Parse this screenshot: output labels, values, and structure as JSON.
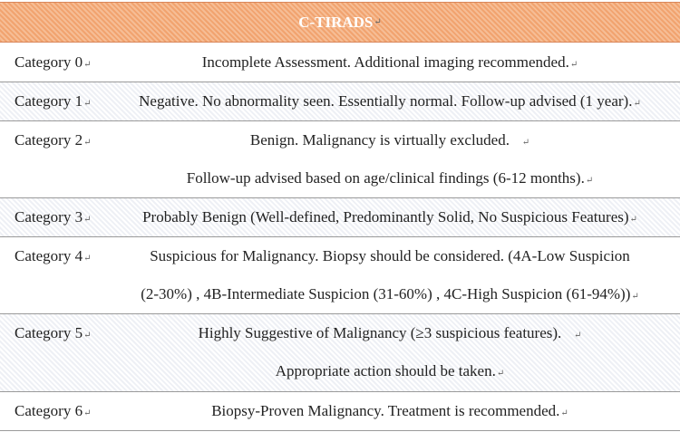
{
  "table": {
    "title": "C-TIRADS",
    "paragraph_mark": "↵",
    "rows": [
      {
        "category": "Category 0",
        "lines": [
          "Incomplete Assessment. Additional imaging recommended."
        ]
      },
      {
        "category": "Category 1",
        "lines": [
          "Negative. No abnormality seen. Essentially normal. Follow-up advised (1 year)."
        ]
      },
      {
        "category": "Category 2",
        "lines": [
          "Benign. Malignancy is virtually excluded.",
          "Follow-up advised based on age/clinical findings (6-12 months)."
        ]
      },
      {
        "category": "Category 3",
        "lines": [
          "Probably Benign (Well-defined, Predominantly Solid, No Suspicious Features)"
        ]
      },
      {
        "category": "Category 4",
        "lines": [
          "Suspicious for Malignancy. Biopsy should be considered. (4A-Low Suspicion",
          "(2-30%) , 4B-Intermediate Suspicion (31-60%) , 4C-High Suspicion (61-94%))"
        ]
      },
      {
        "category": "Category 5",
        "lines": [
          "Highly Suggestive of Malignancy (≥3 suspicious features).",
          "Appropriate action should be taken."
        ]
      },
      {
        "category": "Category 6",
        "lines": [
          "Biopsy-Proven Malignancy. Treatment is recommended."
        ]
      }
    ]
  }
}
